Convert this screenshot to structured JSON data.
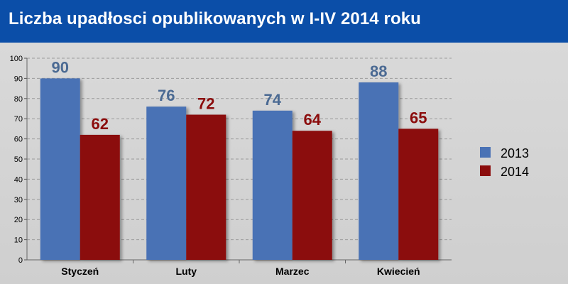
{
  "header": {
    "title": "Liczba upadłosci opublikowanych w I-IV 2014 roku",
    "background": "#0b4ea8"
  },
  "chart_data": {
    "type": "bar",
    "title": "Liczba upadłosci opublikowanych w I-IV 2014 roku",
    "categories": [
      "Styczeń",
      "Luty",
      "Marzec",
      "Kwiecień"
    ],
    "series": [
      {
        "name": "2013",
        "values": [
          90,
          76,
          74,
          88
        ],
        "color": "#4a72b5",
        "label_color": "#4b6a93"
      },
      {
        "name": "2014",
        "values": [
          62,
          72,
          64,
          65
        ],
        "color": "#8b0c0c",
        "label_color": "#8b0c0c"
      }
    ],
    "ylim": [
      0,
      100
    ],
    "yticks": [
      0,
      10,
      20,
      30,
      40,
      50,
      60,
      70,
      80,
      90,
      100
    ],
    "grid": true,
    "legend_position": "right",
    "xlabel": "",
    "ylabel": ""
  }
}
